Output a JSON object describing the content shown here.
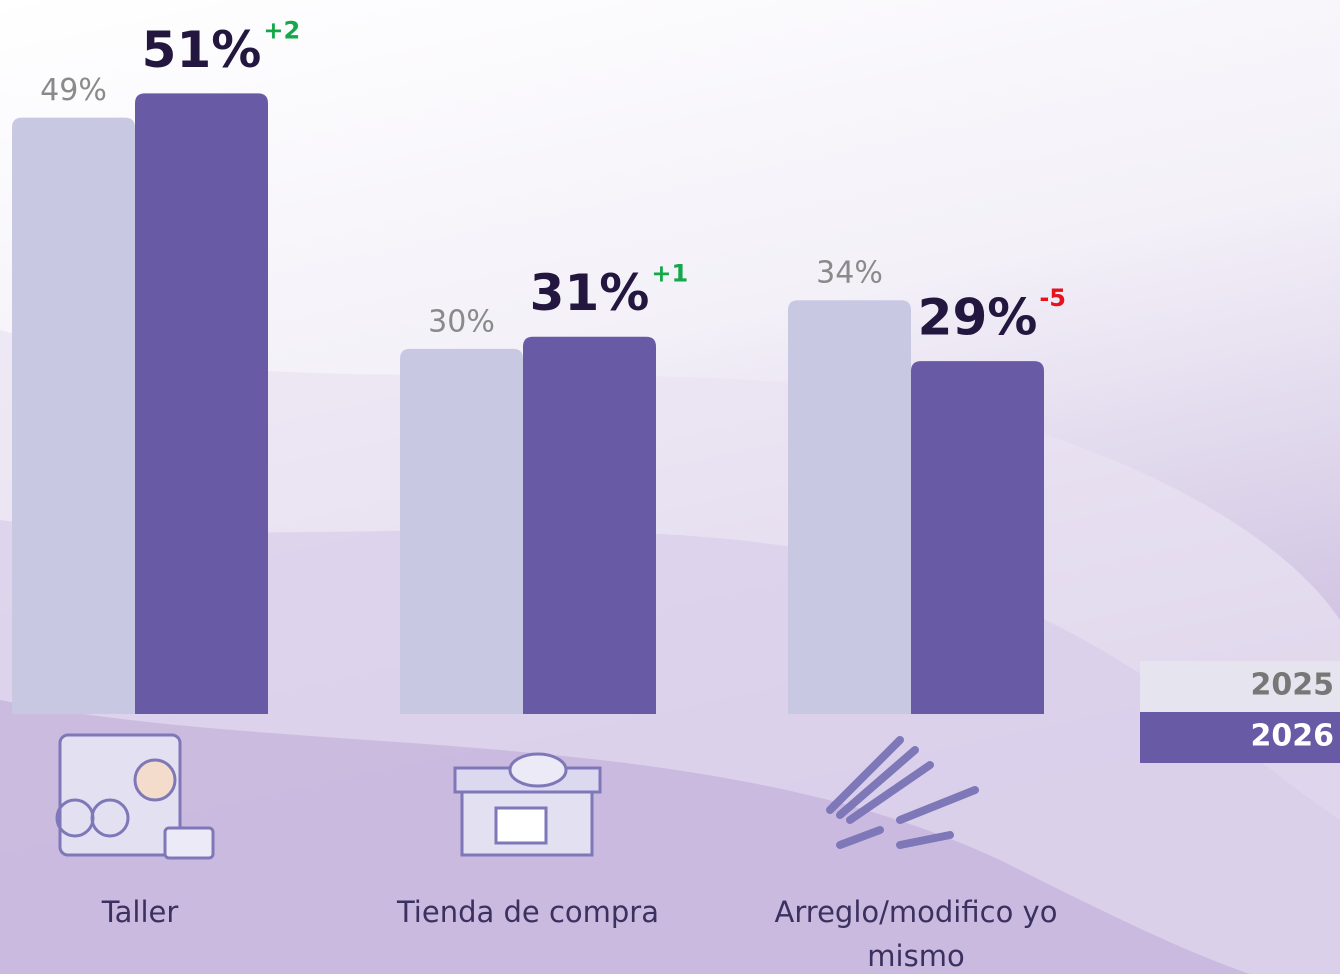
{
  "chart_data": {
    "type": "bar",
    "categories": [
      "Taller",
      "Tienda de compra",
      "Arreglo/modifico yo mismo"
    ],
    "series": [
      {
        "name": "2025",
        "color": "#c9c8e3",
        "values": [
          49,
          30,
          34
        ],
        "value_labels": [
          "49%",
          "30%",
          "34%"
        ]
      },
      {
        "name": "2026",
        "color": "#695aa6",
        "values": [
          51,
          31,
          29
        ],
        "value_labels": [
          "51%",
          "31%",
          "29%"
        ]
      }
    ],
    "changes": [
      {
        "value": 2,
        "label": "+2"
      },
      {
        "value": 1,
        "label": "+1"
      },
      {
        "value": -5,
        "label": "-5"
      }
    ],
    "legend": "right"
  }
}
